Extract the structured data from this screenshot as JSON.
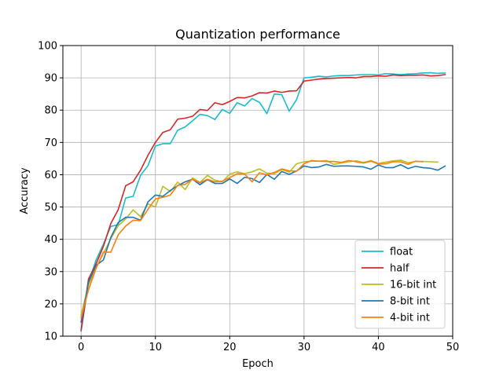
{
  "chart_data": {
    "type": "line",
    "title": "Quantization performance",
    "xlabel": "Epoch",
    "ylabel": "Accuracy",
    "xlim": [
      -2.45,
      50
    ],
    "ylim": [
      10,
      100
    ],
    "xticks": [
      0,
      10,
      20,
      30,
      40,
      50
    ],
    "yticks": [
      10,
      20,
      30,
      40,
      50,
      60,
      70,
      80,
      90,
      100
    ],
    "grid": true,
    "legend": "lower-right",
    "series": [
      {
        "name": "float",
        "color": "#17becf",
        "x": [
          0,
          1,
          2,
          3,
          4,
          5,
          6,
          7,
          8,
          9,
          10,
          11,
          12,
          13,
          14,
          15,
          16,
          17,
          18,
          19,
          20,
          21,
          22,
          23,
          24,
          25,
          26,
          27,
          28,
          29,
          30,
          31,
          32,
          33,
          34,
          35,
          36,
          37,
          38,
          39,
          40,
          41,
          42,
          43,
          44,
          45,
          46,
          47,
          48,
          49
        ],
        "values": [
          11.5,
          26.5,
          33.5,
          38.5,
          44.0,
          44.5,
          52.8,
          53.3,
          59.8,
          62.8,
          68.9,
          69.6,
          69.6,
          73.8,
          74.8,
          76.7,
          78.7,
          78.3,
          77.1,
          80.2,
          79.0,
          82.3,
          81.3,
          83.6,
          82.4,
          78.9,
          85.0,
          84.8,
          79.7,
          83.3,
          90.0,
          90.2,
          90.5,
          90.3,
          90.6,
          90.7,
          90.7,
          90.9,
          91.0,
          91.0,
          90.9,
          91.3,
          91.2,
          91.0,
          91.2,
          91.3,
          91.5,
          91.6,
          91.4,
          91.5
        ]
      },
      {
        "name": "half",
        "color": "#d62728",
        "x": [
          0,
          1,
          2,
          3,
          4,
          5,
          6,
          7,
          8,
          9,
          10,
          11,
          12,
          13,
          14,
          15,
          16,
          17,
          18,
          19,
          20,
          21,
          22,
          23,
          24,
          25,
          26,
          27,
          28,
          29,
          30,
          31,
          32,
          33,
          34,
          35,
          36,
          37,
          38,
          39,
          40,
          41,
          42,
          43,
          44,
          45,
          46,
          47,
          48,
          49
        ],
        "values": [
          11.8,
          27.7,
          32.3,
          37.8,
          44.9,
          49.2,
          56.6,
          57.8,
          61.4,
          66.0,
          70.0,
          73.1,
          73.9,
          77.2,
          77.5,
          78.1,
          80.2,
          79.9,
          82.3,
          81.7,
          82.7,
          83.9,
          83.8,
          84.4,
          85.4,
          85.3,
          85.9,
          85.5,
          85.9,
          86.0,
          89.0,
          89.3,
          89.6,
          89.8,
          89.9,
          90.0,
          90.1,
          90.0,
          90.4,
          90.4,
          90.6,
          90.5,
          90.9,
          90.7,
          90.8,
          90.8,
          90.9,
          90.6,
          90.7,
          91.0
        ]
      },
      {
        "name": "16-bit int",
        "color": "#bcbd22",
        "x": [
          0,
          1,
          2,
          3,
          4,
          5,
          6,
          7,
          8,
          9,
          10,
          11,
          12,
          13,
          14,
          15,
          16,
          17,
          18,
          19,
          20,
          21,
          22,
          23,
          24,
          25,
          26,
          27,
          28,
          29,
          30,
          31,
          32,
          33,
          34,
          35,
          36,
          37,
          38,
          39,
          40,
          41,
          42,
          43,
          44,
          45,
          46,
          47,
          48
        ],
        "values": [
          16.5,
          25.9,
          31.1,
          35.6,
          40.2,
          44.2,
          46.3,
          49.1,
          47.0,
          51.0,
          50.0,
          56.4,
          54.8,
          57.7,
          55.4,
          59.0,
          57.6,
          59.8,
          58.3,
          57.8,
          60.2,
          60.9,
          60.3,
          60.9,
          61.8,
          60.5,
          60.3,
          61.6,
          60.8,
          63.4,
          64.0,
          64.2,
          64.2,
          64.4,
          63.2,
          63.6,
          64.0,
          64.3,
          63.8,
          64.4,
          63.5,
          63.9,
          64.3,
          64.5,
          63.7,
          64.1,
          64.1,
          64.0,
          63.9
        ]
      },
      {
        "name": "8-bit int",
        "color": "#1f77b4",
        "x": [
          0,
          1,
          2,
          3,
          4,
          5,
          6,
          7,
          8,
          9,
          10,
          11,
          12,
          13,
          14,
          15,
          16,
          17,
          18,
          19,
          20,
          21,
          22,
          23,
          24,
          25,
          26,
          27,
          28,
          29,
          30,
          31,
          32,
          33,
          34,
          35,
          36,
          37,
          38,
          39,
          40,
          41,
          42,
          43,
          44,
          45,
          46,
          47,
          48,
          49
        ],
        "values": [
          14.3,
          26.7,
          31.9,
          33.6,
          40.6,
          45.2,
          46.8,
          46.8,
          45.9,
          51.6,
          53.7,
          53.3,
          55.1,
          56.6,
          57.8,
          58.6,
          56.9,
          58.5,
          57.3,
          57.3,
          58.7,
          57.3,
          59.2,
          58.8,
          57.6,
          60.1,
          58.6,
          61.0,
          60.1,
          61.2,
          62.7,
          62.2,
          62.4,
          63.2,
          62.6,
          62.7,
          62.7,
          62.6,
          62.4,
          61.7,
          63.0,
          62.2,
          62.2,
          63.1,
          61.9,
          62.6,
          62.2,
          62.0,
          61.4,
          62.7
        ]
      },
      {
        "name": "4-bit int",
        "color": "#ff7f0e",
        "x": [
          0,
          1,
          2,
          3,
          4,
          5,
          6,
          7,
          8,
          9,
          10,
          11,
          12,
          13,
          14,
          15,
          16,
          17,
          18,
          19,
          20,
          21,
          22,
          23,
          24,
          25,
          26,
          27,
          28,
          29,
          30,
          31,
          32,
          33,
          34,
          35,
          36,
          37,
          38,
          39,
          40,
          41,
          42,
          43,
          44,
          45,
          46
        ],
        "values": [
          15.7,
          24.4,
          30.9,
          36.0,
          36.0,
          41.4,
          44.1,
          45.9,
          45.8,
          49.3,
          52.5,
          53.0,
          53.7,
          56.7,
          57.0,
          58.6,
          57.5,
          58.6,
          57.8,
          58.0,
          59.1,
          60.3,
          60.2,
          57.8,
          60.6,
          60.0,
          60.7,
          61.8,
          61.2,
          61.1,
          63.4,
          64.4,
          64.2,
          64.1,
          64.1,
          63.8,
          64.4,
          64.0,
          63.6,
          64.2,
          63.3,
          63.4,
          64.0,
          64.0,
          63.2,
          64.2,
          64.0
        ]
      }
    ]
  }
}
